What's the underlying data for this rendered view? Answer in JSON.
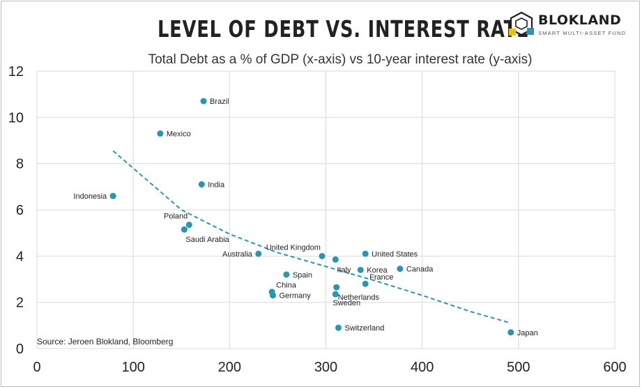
{
  "header": {
    "title": "LEVEL OF DEBT VS. INTEREST RATE",
    "subtitle": "Total Debt as a % of GDP (x-axis) vs 10-year interest rate (y-axis)"
  },
  "brand": {
    "name": "BLOKLAND",
    "tagline": "SMART MULTI-ASSET FUND",
    "logo_icon": "cube-stack-icon",
    "colors": [
      "#1e1e1e",
      "#f2c200",
      "#2d8fc4"
    ]
  },
  "source": "Source: Jeroen Blokland, Bloomberg",
  "colors": {
    "point": "#2497b4",
    "trend": "#2497b4",
    "grid": "#d9d9d9",
    "axis_text": "#222222"
  },
  "chart_data": {
    "type": "scatter",
    "title": "LEVEL OF DEBT VS. INTEREST RATE",
    "subtitle": "Total Debt as a % of GDP (x-axis) vs 10-year interest rate (y-axis)",
    "xlabel": "",
    "ylabel": "",
    "xlim": [
      0,
      600
    ],
    "ylim": [
      0,
      12
    ],
    "xticks": [
      0,
      100,
      200,
      300,
      400,
      500,
      600
    ],
    "yticks": [
      0,
      2,
      4,
      6,
      8,
      10,
      12
    ],
    "grid": "major, both axes",
    "points": [
      {
        "label": "Brazil",
        "x": 173,
        "y": 10.7,
        "label_pos": "right"
      },
      {
        "label": "Mexico",
        "x": 128,
        "y": 9.3,
        "label_pos": "right"
      },
      {
        "label": "India",
        "x": 171,
        "y": 7.1,
        "label_pos": "right"
      },
      {
        "label": "Indonesia",
        "x": 79,
        "y": 6.6,
        "label_pos": "left"
      },
      {
        "label": "Poland",
        "x": 158,
        "y": 5.35,
        "label_pos": "upper-left"
      },
      {
        "label": "Saudi Arabia",
        "x": 153,
        "y": 5.15,
        "label_pos": "lower-right"
      },
      {
        "label": "Australia",
        "x": 230,
        "y": 4.1,
        "label_pos": "left"
      },
      {
        "label": "United Kingdom",
        "x": 296,
        "y": 4.0,
        "label_pos": "upper-left"
      },
      {
        "label": "United States",
        "x": 341,
        "y": 4.1,
        "label_pos": "right"
      },
      {
        "label": "Italy",
        "x": 310,
        "y": 3.85,
        "label_pos": "lower-right"
      },
      {
        "label": "Korea",
        "x": 336,
        "y": 3.4,
        "label_pos": "right"
      },
      {
        "label": "Canada",
        "x": 377,
        "y": 3.45,
        "label_pos": "right"
      },
      {
        "label": "Spain",
        "x": 259,
        "y": 3.2,
        "label_pos": "right"
      },
      {
        "label": "France",
        "x": 341,
        "y": 2.8,
        "label_pos": "upper-right"
      },
      {
        "label": "Netherlands",
        "x": 311,
        "y": 2.65,
        "label_pos": "lower-right"
      },
      {
        "label": "China",
        "x": 244,
        "y": 2.45,
        "label_pos": "upper-right"
      },
      {
        "label": "Germany",
        "x": 245,
        "y": 2.3,
        "label_pos": "right"
      },
      {
        "label": "Sweden",
        "x": 310,
        "y": 2.35,
        "label_pos": "below"
      },
      {
        "label": "Switzerland",
        "x": 313,
        "y": 0.9,
        "label_pos": "right"
      },
      {
        "label": "Japan",
        "x": 492,
        "y": 0.7,
        "label_pos": "right"
      }
    ],
    "trendline": {
      "type": "power",
      "style": "dashed",
      "points": [
        [
          79,
          8.55
        ],
        [
          150,
          6.0
        ],
        [
          200,
          4.95
        ],
        [
          250,
          4.15
        ],
        [
          300,
          3.55
        ],
        [
          350,
          2.95
        ],
        [
          400,
          2.3
        ],
        [
          450,
          1.6
        ],
        [
          492,
          1.1
        ]
      ]
    }
  }
}
